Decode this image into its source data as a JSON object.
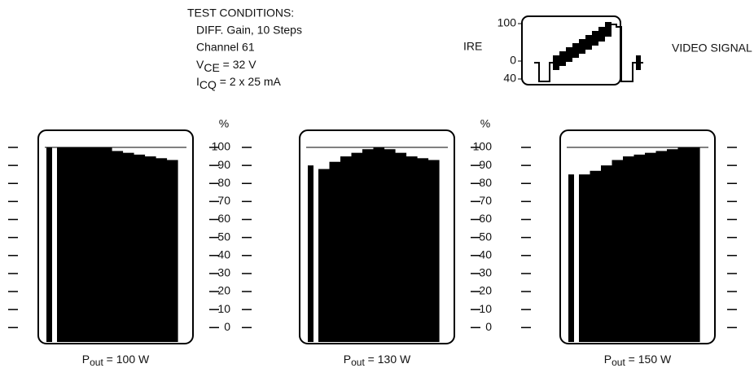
{
  "test_conditions": {
    "heading": "TEST CONDITIONS:",
    "lines": [
      "DIFF. Gain, 10 Steps",
      "Channel 61"
    ],
    "vce": [
      "V",
      "CE",
      " = 32 V"
    ],
    "icq": [
      "I",
      "CQ",
      " = 2 x 25 mA"
    ]
  },
  "video_signal": {
    "axis_label": "IRE",
    "title": "VIDEO SIGNAL",
    "ticks": [
      "100",
      "0",
      "40"
    ]
  },
  "chart_data": [
    {
      "type": "bar",
      "title": [
        "P",
        "out",
        " = 100 W"
      ],
      "color": "#000000",
      "values": [
        100,
        100,
        100,
        100,
        100,
        100,
        98,
        97,
        96,
        95,
        94,
        93
      ],
      "ylim": [
        -8,
        109.5
      ],
      "yticks": [
        0,
        10,
        20,
        30,
        40,
        50,
        60,
        70,
        80,
        90,
        100
      ]
    },
    {
      "type": "bar",
      "title": [
        "P",
        "out",
        " = 130 W"
      ],
      "y_label": "%",
      "color": "#000000",
      "values": [
        90,
        88,
        92,
        95,
        97,
        99,
        100,
        99,
        97,
        95,
        94,
        93
      ],
      "ylim": [
        -8,
        109.5
      ],
      "yticks": [
        0,
        10,
        20,
        30,
        40,
        50,
        60,
        70,
        80,
        90,
        100
      ]
    },
    {
      "type": "bar",
      "title": [
        "P",
        "out",
        " = 150 W"
      ],
      "y_label": "%",
      "color": "#000000",
      "values": [
        85,
        85,
        87,
        90,
        93,
        95,
        96,
        97,
        98,
        99,
        100,
        100
      ],
      "ylim": [
        -8,
        109.5
      ],
      "yticks": [
        0,
        10,
        20,
        30,
        40,
        50,
        60,
        70,
        80,
        90,
        100
      ]
    }
  ]
}
